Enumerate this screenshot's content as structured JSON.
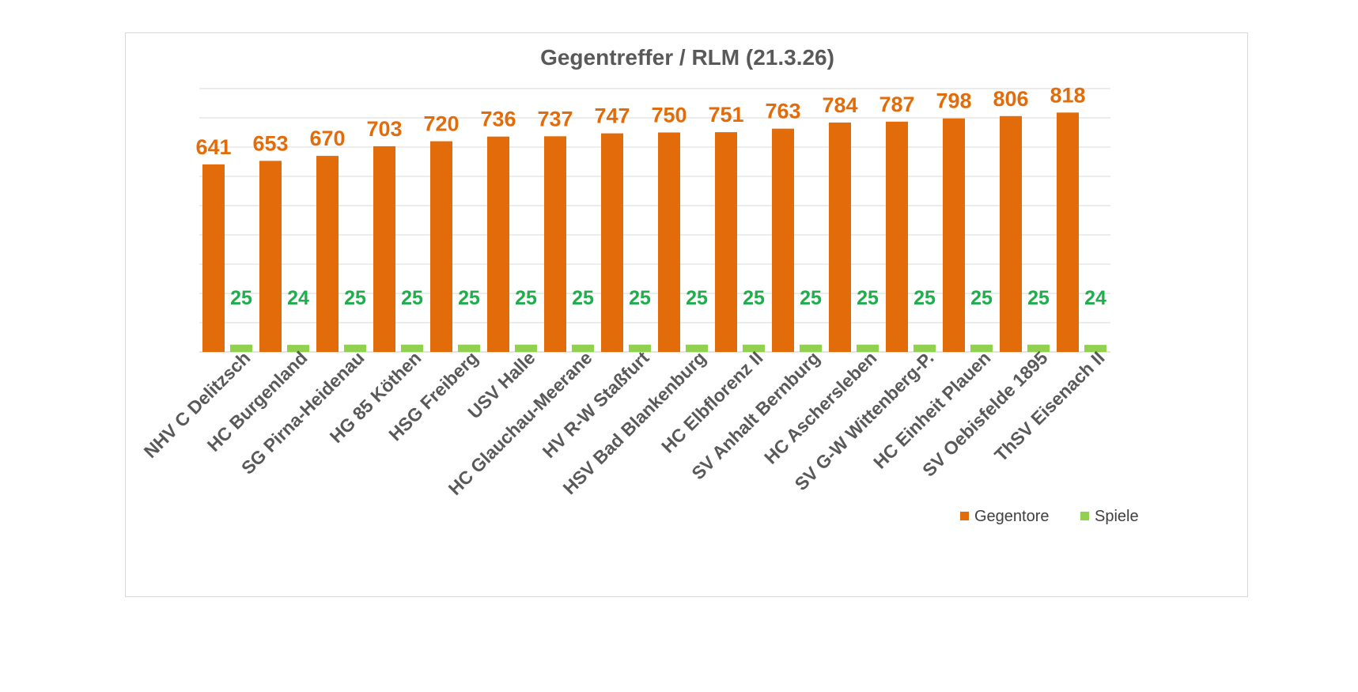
{
  "chart_data": {
    "type": "bar",
    "title": "Gegentreffer / RLM (21.3.26)",
    "categories": [
      "NHV C Delitzsch",
      "HC Burgenland",
      "SG Pirna-Heidenau",
      "HG 85 Köthen",
      "HSG Freiberg",
      "USV Halle",
      "HC Glauchau-Meerane",
      "HV R-W Staßfurt",
      "HSV Bad Blankenburg",
      "HC Elbflorenz II",
      "SV Anhalt Bernburg",
      "HC Aschersleben",
      "SV G-W Wittenberg-P.",
      "HC Einheit Plauen",
      "SV Oebisfelde 1895",
      "ThSV Eisenach II"
    ],
    "series": [
      {
        "name": "Gegentore",
        "color": "#e36c0a",
        "label_color": "#e36c0a",
        "values": [
          641,
          653,
          670,
          703,
          720,
          736,
          737,
          747,
          750,
          751,
          763,
          784,
          787,
          798,
          806,
          818
        ]
      },
      {
        "name": "Spiele",
        "color": "#92d050",
        "label_color": "#1fae4b",
        "values": [
          25,
          24,
          25,
          25,
          25,
          25,
          25,
          25,
          25,
          25,
          25,
          25,
          25,
          25,
          25,
          24
        ]
      }
    ],
    "xlabel": "",
    "ylabel": "",
    "ylim": [
      0,
      900
    ],
    "y_axis_labels_shown": false,
    "grid": true,
    "data_labels": true,
    "legend": {
      "position": "bottom-right"
    }
  }
}
